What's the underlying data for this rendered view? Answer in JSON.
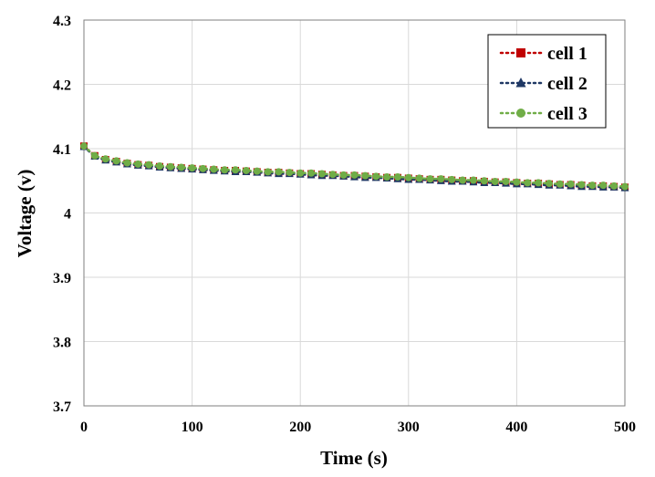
{
  "chart_data": {
    "type": "line",
    "title": "",
    "xlabel": "Time (s)",
    "ylabel": "Voltage (v)",
    "xlim": [
      0,
      500
    ],
    "ylim": [
      3.7,
      4.3
    ],
    "x_ticks": [
      0,
      100,
      200,
      300,
      400,
      500
    ],
    "y_ticks": [
      3.7,
      3.8,
      3.9,
      4,
      4.1,
      4.2,
      4.3
    ],
    "x_tick_labels": [
      "0",
      "100",
      "200",
      "300",
      "400",
      "500"
    ],
    "y_tick_labels": [
      "3.7",
      "3.8",
      "3.9",
      "4",
      "4.1",
      "4.2",
      "4.3"
    ],
    "grid": true,
    "legend_position": "top-right",
    "x": [
      0,
      10,
      20,
      30,
      40,
      50,
      60,
      70,
      80,
      90,
      100,
      110,
      120,
      130,
      140,
      150,
      160,
      170,
      180,
      190,
      200,
      210,
      220,
      230,
      240,
      250,
      260,
      270,
      280,
      290,
      300,
      310,
      320,
      330,
      340,
      350,
      360,
      370,
      380,
      390,
      400,
      410,
      420,
      430,
      440,
      450,
      460,
      470,
      480,
      490,
      500
    ],
    "series": [
      {
        "name": "cell 1",
        "color": "#c00000",
        "marker": "square",
        "values": [
          4.104,
          4.089,
          4.083,
          4.08,
          4.077,
          4.075,
          4.074,
          4.072,
          4.071,
          4.07,
          4.069,
          4.068,
          4.067,
          4.066,
          4.066,
          4.065,
          4.064,
          4.063,
          4.063,
          4.062,
          4.061,
          4.061,
          4.06,
          4.059,
          4.058,
          4.058,
          4.057,
          4.056,
          4.055,
          4.055,
          4.054,
          4.053,
          4.052,
          4.052,
          4.051,
          4.05,
          4.05,
          4.049,
          4.048,
          4.048,
          4.047,
          4.046,
          4.046,
          4.045,
          4.044,
          4.044,
          4.043,
          4.042,
          4.042,
          4.041,
          4.04
        ]
      },
      {
        "name": "cell 2",
        "color": "#1f3864",
        "marker": "triangle",
        "values": [
          4.103,
          4.088,
          4.082,
          4.079,
          4.076,
          4.074,
          4.073,
          4.071,
          4.07,
          4.069,
          4.068,
          4.067,
          4.066,
          4.065,
          4.064,
          4.064,
          4.063,
          4.062,
          4.061,
          4.061,
          4.06,
          4.059,
          4.058,
          4.058,
          4.057,
          4.056,
          4.055,
          4.055,
          4.054,
          4.053,
          4.052,
          4.052,
          4.051,
          4.05,
          4.049,
          4.049,
          4.048,
          4.047,
          4.047,
          4.046,
          4.045,
          4.045,
          4.044,
          4.043,
          4.043,
          4.042,
          4.041,
          4.041,
          4.04,
          4.04,
          4.039
        ]
      },
      {
        "name": "cell 3",
        "color": "#70ad47",
        "marker": "circle",
        "values": [
          4.104,
          4.089,
          4.084,
          4.081,
          4.078,
          4.076,
          4.075,
          4.073,
          4.072,
          4.071,
          4.07,
          4.069,
          4.068,
          4.067,
          4.067,
          4.066,
          4.065,
          4.064,
          4.064,
          4.063,
          4.062,
          4.062,
          4.061,
          4.06,
          4.059,
          4.059,
          4.058,
          4.057,
          4.056,
          4.056,
          4.055,
          4.054,
          4.053,
          4.053,
          4.052,
          4.051,
          4.051,
          4.05,
          4.049,
          4.049,
          4.048,
          4.047,
          4.047,
          4.046,
          4.045,
          4.045,
          4.044,
          4.043,
          4.043,
          4.042,
          4.041
        ]
      }
    ]
  }
}
